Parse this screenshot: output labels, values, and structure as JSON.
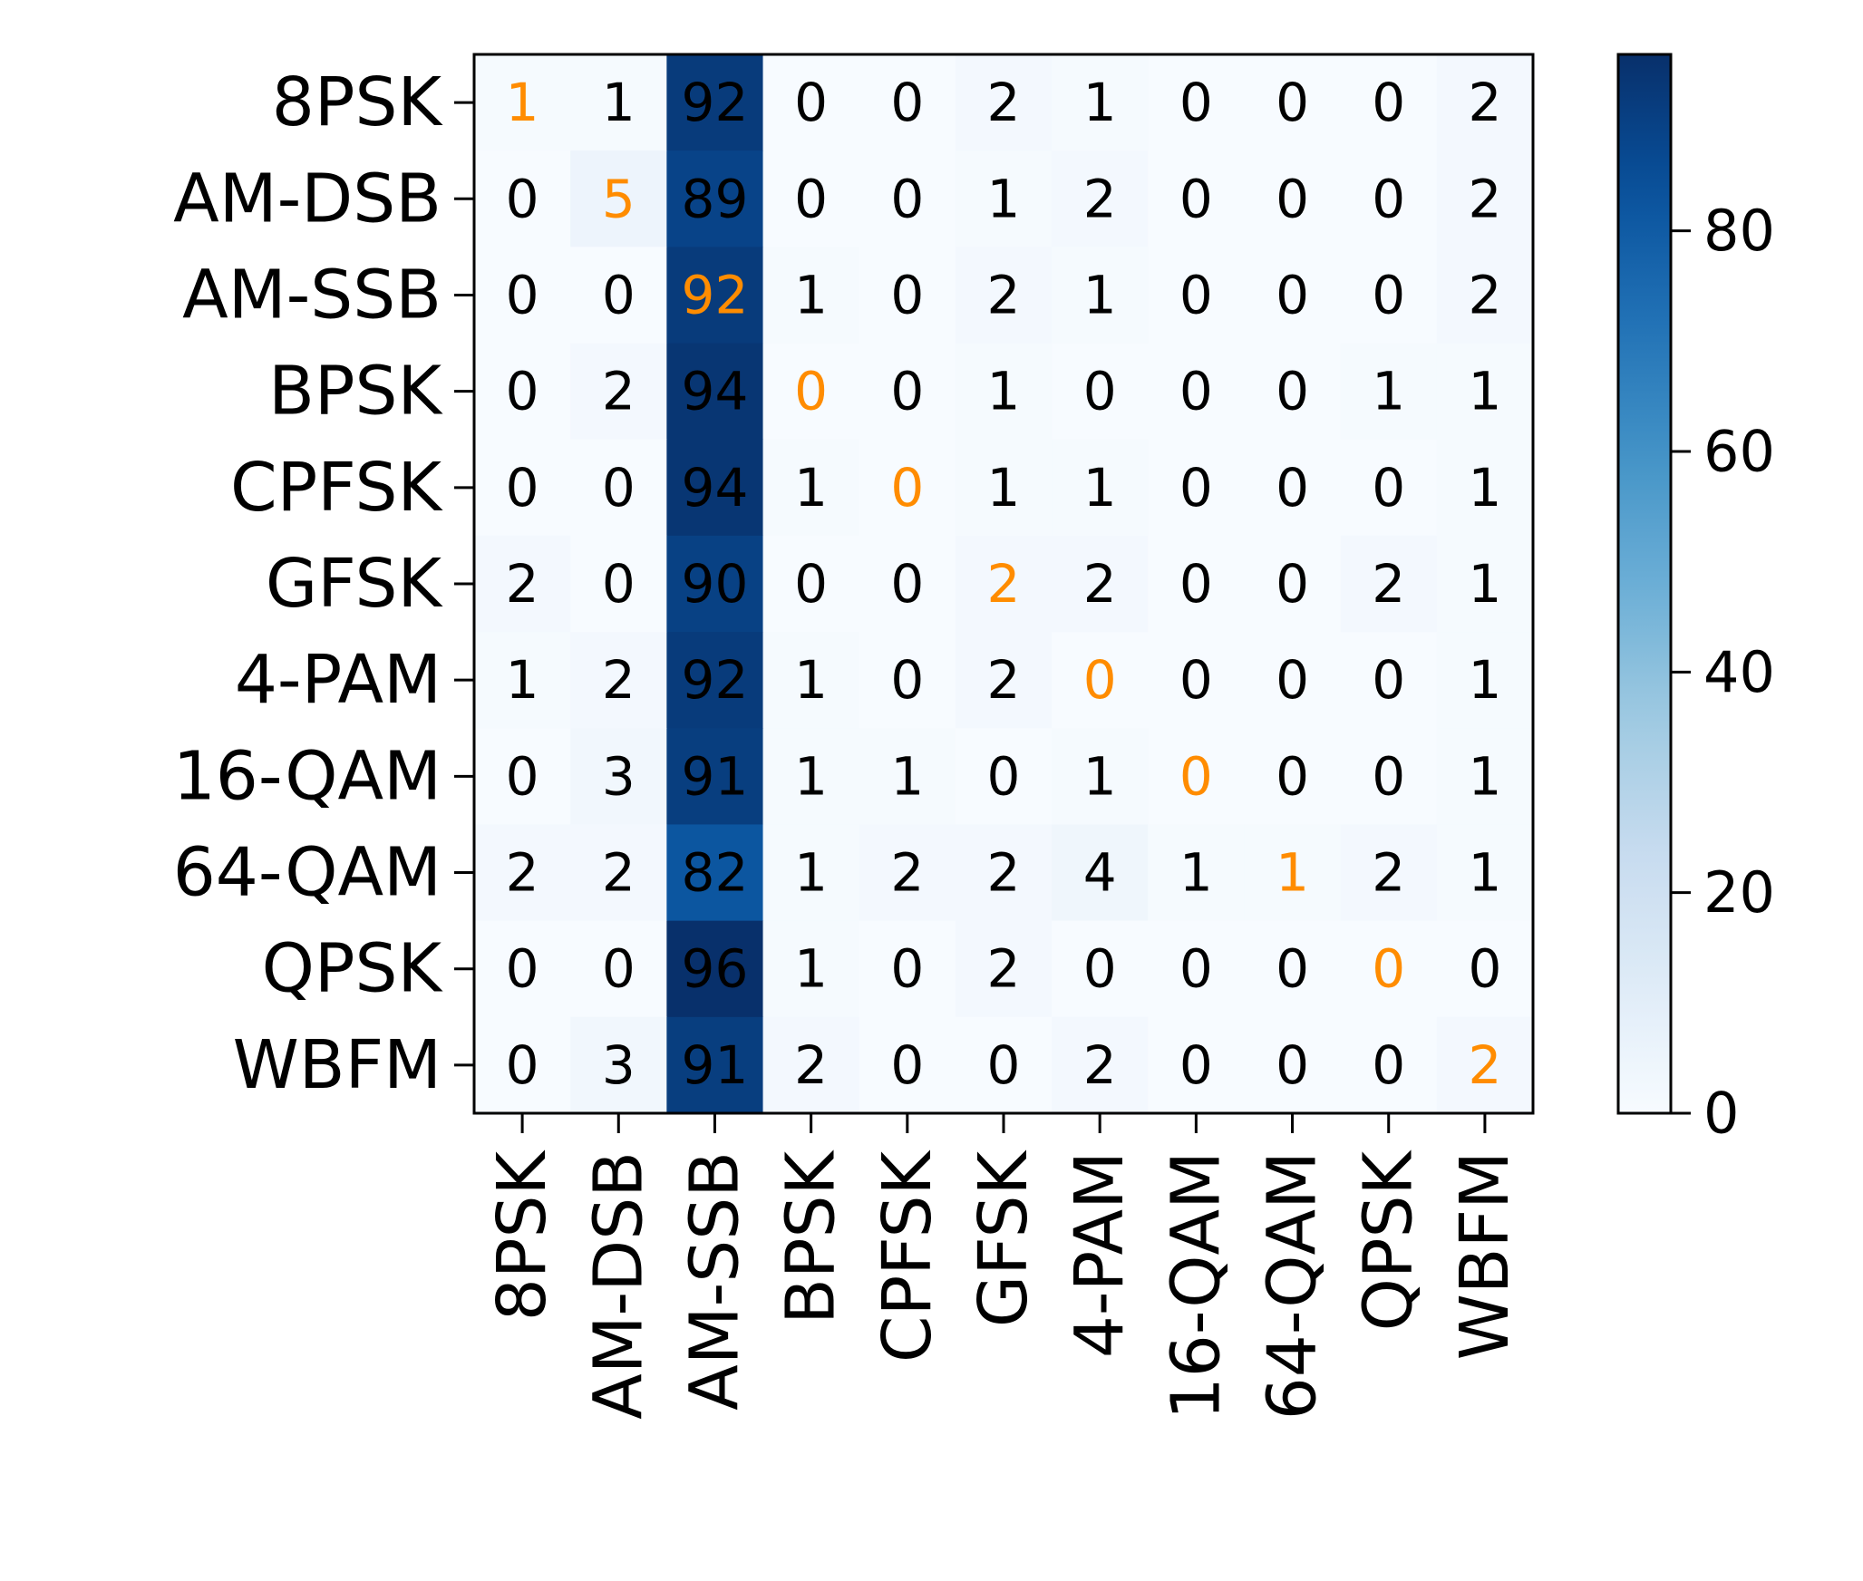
{
  "chart_data": {
    "type": "heatmap",
    "title": "",
    "xlabel": "",
    "ylabel": "",
    "row_labels": [
      "8PSK",
      "AM-DSB",
      "AM-SSB",
      "BPSK",
      "CPFSK",
      "GFSK",
      "4-PAM",
      "16-QAM",
      "64-QAM",
      "QPSK",
      "WBFM"
    ],
    "col_labels": [
      "8PSK",
      "AM-DSB",
      "AM-SSB",
      "BPSK",
      "CPFSK",
      "GFSK",
      "4-PAM",
      "16-QAM",
      "64-QAM",
      "QPSK",
      "WBFM"
    ],
    "values": [
      [
        1,
        1,
        92,
        0,
        0,
        2,
        1,
        0,
        0,
        0,
        2
      ],
      [
        0,
        5,
        89,
        0,
        0,
        1,
        2,
        0,
        0,
        0,
        2
      ],
      [
        0,
        0,
        92,
        1,
        0,
        2,
        1,
        0,
        0,
        0,
        2
      ],
      [
        0,
        2,
        94,
        0,
        0,
        1,
        0,
        0,
        0,
        1,
        1
      ],
      [
        0,
        0,
        94,
        1,
        0,
        1,
        1,
        0,
        0,
        0,
        1
      ],
      [
        2,
        0,
        90,
        0,
        0,
        2,
        2,
        0,
        0,
        2,
        1
      ],
      [
        1,
        2,
        92,
        1,
        0,
        2,
        0,
        0,
        0,
        0,
        1
      ],
      [
        0,
        3,
        91,
        1,
        1,
        0,
        1,
        0,
        0,
        0,
        1
      ],
      [
        2,
        2,
        82,
        1,
        2,
        2,
        4,
        1,
        1,
        2,
        1
      ],
      [
        0,
        0,
        96,
        1,
        0,
        2,
        0,
        0,
        0,
        0,
        0
      ],
      [
        0,
        3,
        91,
        2,
        0,
        0,
        2,
        0,
        0,
        0,
        2
      ]
    ],
    "colormap": "Blues",
    "value_range": [
      0,
      96
    ],
    "colorbar": {
      "ticks": [
        0,
        20,
        40,
        60,
        80
      ],
      "tick_labels": [
        "0",
        "20",
        "40",
        "60",
        "80"
      ]
    },
    "annotation_color": "#000000",
    "diagonal_annotation_color": "#ff8c00",
    "grid": false,
    "legend": "colorbar-right"
  }
}
